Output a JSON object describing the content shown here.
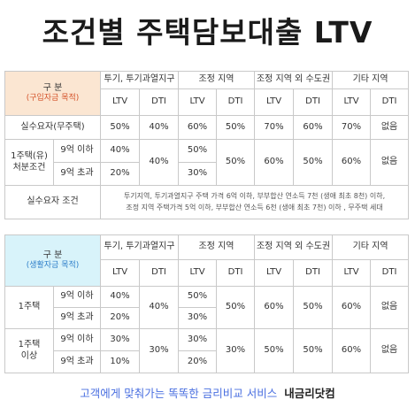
{
  "title": "조건별 주택담보대출 LTV",
  "table1": {
    "header": {
      "category": "구 분",
      "category_sub": "(구입자금 목적)",
      "regions": [
        "투기, 투기과열지구",
        "조정 지역",
        "조정 지역 외 수도권",
        "기타 지역"
      ],
      "ltv": "LTV",
      "dti": "DTI"
    },
    "row_actual": {
      "label": "실수요자(무주택)",
      "values": [
        "50%",
        "40%",
        "60%",
        "50%",
        "70%",
        "60%",
        "70%",
        "없음"
      ]
    },
    "row_one": {
      "label_line1": "1주택(유)",
      "label_line2": "처분조건",
      "under_label": "9억 이하",
      "over_label": "9억 초과",
      "ltv1_under": "40%",
      "ltv1_over": "20%",
      "dti1": "40%",
      "ltv2_under": "50%",
      "ltv2_over": "30%",
      "dti2": "50%",
      "ltv3": "60%",
      "dti3": "50%",
      "ltv4": "60%",
      "dti4": "없음"
    },
    "row_condition": {
      "label": "실수요자 조건",
      "line1": "투기지역, 투기과열지구 주택 가격 6억 이하, 부부합산 연소득 7천 (생애 최초 8천) 이하,",
      "line2": "조정 지역 주택가격 5억 이하, 부부합산 연소득 6천 (생애 최초 7천) 이하 , 무주택 세대"
    }
  },
  "table2": {
    "header": {
      "category": "구 분",
      "category_sub": "(생활자금 목적)",
      "regions": [
        "투기, 투기과열지구",
        "조정 지역",
        "조정 지역 외 수도권",
        "기타 지역"
      ],
      "ltv": "LTV",
      "dti": "DTI"
    },
    "row_one": {
      "label": "1주택",
      "under_label": "9억 이하",
      "over_label": "9억 초과",
      "ltv1_under": "40%",
      "ltv1_over": "20%",
      "dti1": "40%",
      "ltv2_under": "50%",
      "ltv2_over": "30%",
      "dti2": "50%",
      "ltv3": "60%",
      "dti3": "50%",
      "ltv4": "60%",
      "dti4": "없음"
    },
    "row_multi": {
      "label_line1": "1주택",
      "label_line2": "이상",
      "under_label": "9억 이하",
      "over_label": "9억 초과",
      "ltv1_under": "30%",
      "ltv1_over": "10%",
      "dti1": "30%",
      "ltv2_under": "30%",
      "ltv2_over": "20%",
      "dti2": "30%",
      "ltv3": "50%",
      "dti3": "50%",
      "ltv4": "60%",
      "dti4": "없음"
    }
  },
  "footer": {
    "slogan": "고객에게 맞춰가는 똑똑한 금리비교 서비스",
    "brand": "내금리닷컴"
  },
  "colors": {
    "header1_bg": "#fbe6d2",
    "header2_bg": "#d8f3fa",
    "sub1_text": "#d4542b",
    "sub2_text": "#2f7fc9",
    "footer_text": "#4a6fe0"
  }
}
